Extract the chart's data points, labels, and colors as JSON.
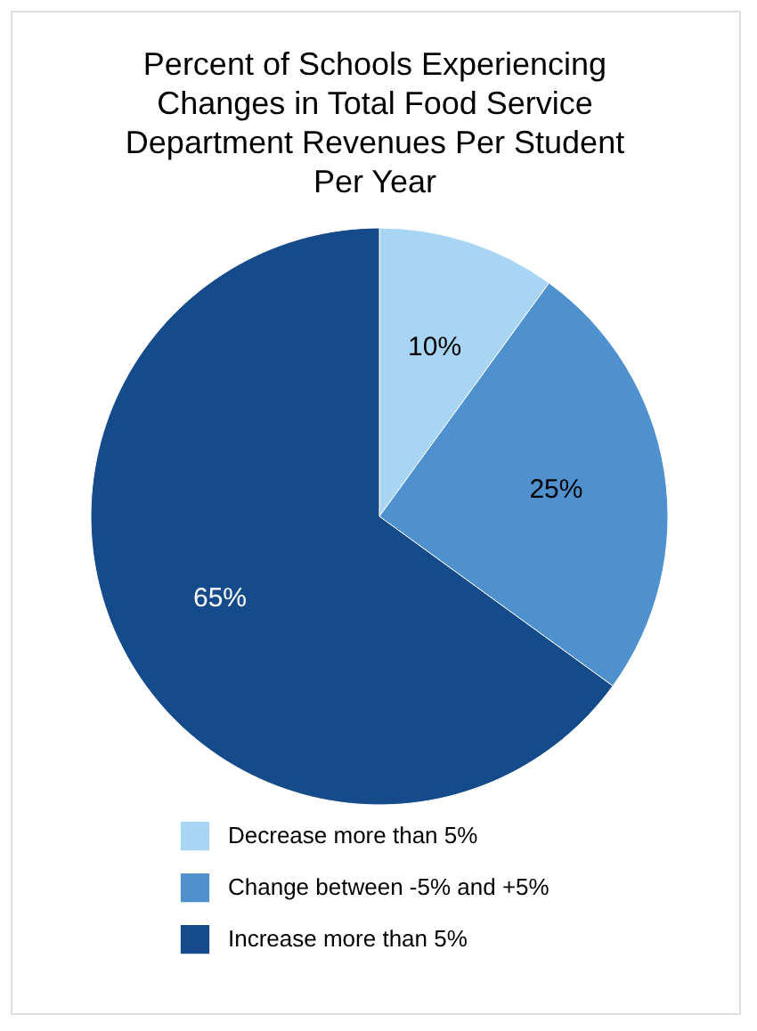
{
  "chart_data": {
    "type": "pie",
    "title": "Percent of Schools Experiencing\nChanges in Total Food Service\nDepartment Revenues Per Student\nPer Year",
    "categories": [
      "Decrease more than 5%",
      "Change between -5% and +5%",
      "Increase more than 5%"
    ],
    "values": [
      10,
      25,
      65
    ],
    "colors": [
      "#a7d5f3",
      "#4f90cf",
      "#164b8b"
    ],
    "value_labels": [
      "10%",
      "25%",
      "65%"
    ],
    "legend": "bottom"
  }
}
